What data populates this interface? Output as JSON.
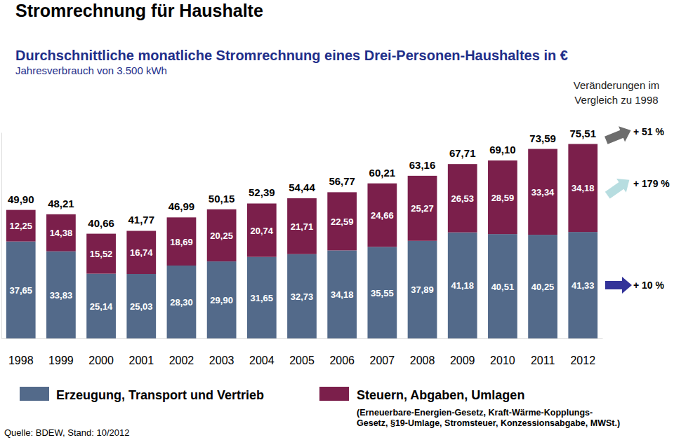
{
  "chart_data": {
    "type": "bar",
    "title": "Stromrechnung für Haushalte",
    "subtitle": "Durchschnittliche monatliche Stromrechnung eines Drei-Personen-Haushaltes in €",
    "subtitle2": "Jahresverbrauch von 3.500 kWh",
    "source": "Quelle: BDEW, Stand: 10/2012",
    "categories": [
      "1998",
      "1999",
      "2000",
      "2001",
      "2002",
      "2003",
      "2004",
      "2005",
      "2006",
      "2007",
      "2008",
      "2009",
      "2010",
      "2011",
      "2012"
    ],
    "stacked": true,
    "data_labels": true,
    "tick_labels": "x",
    "grid": false,
    "ylim": [
      0,
      80
    ],
    "yticks": [],
    "series": [
      {
        "name": "Erzeugung, Transport und Vertrieb",
        "color": "#536a8a",
        "values": [
          37.65,
          33.83,
          25.14,
          25.03,
          28.3,
          29.9,
          31.65,
          32.73,
          34.18,
          35.55,
          37.89,
          41.18,
          40.51,
          40.25,
          41.33
        ],
        "value_labels": [
          "37,65",
          "33,83",
          "25,14",
          "25,03",
          "28,30",
          "29,90",
          "31,65",
          "32,73",
          "34,18",
          "35,55",
          "37,89",
          "41,18",
          "40,51",
          "40,25",
          "41,33"
        ]
      },
      {
        "name": "Steuern, Abgaben, Umlagen",
        "color": "#7b1f4b",
        "values": [
          12.25,
          14.38,
          15.52,
          16.74,
          18.69,
          20.25,
          20.74,
          21.71,
          22.59,
          24.66,
          25.27,
          26.53,
          28.59,
          33.34,
          34.18
        ],
        "value_labels": [
          "12,25",
          "14,38",
          "15,52",
          "16,74",
          "18,69",
          "20,25",
          "20,74",
          "21,71",
          "22,59",
          "24,66",
          "25,27",
          "26,53",
          "28,59",
          "33,34",
          "34,18"
        ]
      }
    ],
    "totals": {
      "values": [
        49.9,
        48.21,
        40.66,
        41.77,
        46.99,
        50.15,
        52.39,
        54.44,
        56.77,
        60.21,
        63.16,
        67.71,
        69.1,
        73.59,
        75.51
      ],
      "value_labels": [
        "49,90",
        "48,21",
        "40,66",
        "41,77",
        "46,99",
        "50,15",
        "52,39",
        "54,44",
        "56,77",
        "60,21",
        "63,16",
        "67,71",
        "69,10",
        "73,59",
        "75,51"
      ]
    },
    "legend_note": [
      "(Erneuerbare-Energien-Gesetz, Kraft-Wärme-Kopplungs-",
      "Gesetz, §19-Umlage, Stromsteuer, Konzessionsabgabe, MWSt.)"
    ],
    "changes": {
      "title": [
        "Veränderungen im",
        "Vergleich zu 1998"
      ],
      "total": {
        "value": 51,
        "label": "+ 51 %"
      },
      "series": [
        {
          "value": 10,
          "label": "+ 10 %"
        },
        {
          "value": 179,
          "label": "+ 179 %"
        }
      ]
    }
  }
}
